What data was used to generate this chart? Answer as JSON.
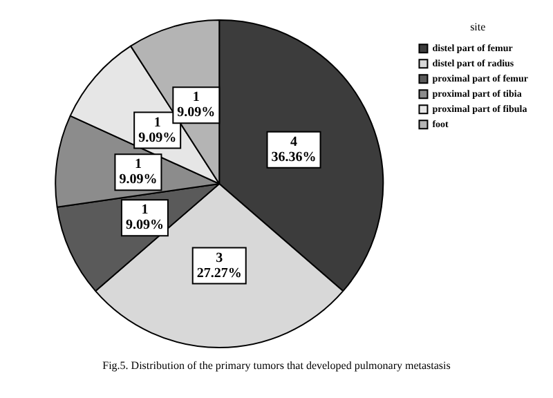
{
  "chart_data": {
    "type": "pie",
    "categories": [
      "distel part of femur",
      "distel part of radius",
      "proximal part of femur",
      "proximal part of tibia",
      "proximal part of fibula",
      "foot"
    ],
    "values": [
      4,
      3,
      1,
      1,
      1,
      1
    ],
    "value_labels": [
      "4\n36.36%",
      "3\n27.27%",
      "1\n9.09%",
      "1\n9.09%",
      "1\n9.09%",
      "1\n9.09%"
    ],
    "colors": [
      "#3c3c3c",
      "#d8d8d8",
      "#5a5a5a",
      "#8c8c8c",
      "#e6e6e6",
      "#b4b4b4"
    ],
    "legend_title": "site",
    "legend": "top right",
    "annotations": [
      "Fig.5. Distribution of the primary tumors that developed pulmonary metastasis"
    ]
  }
}
